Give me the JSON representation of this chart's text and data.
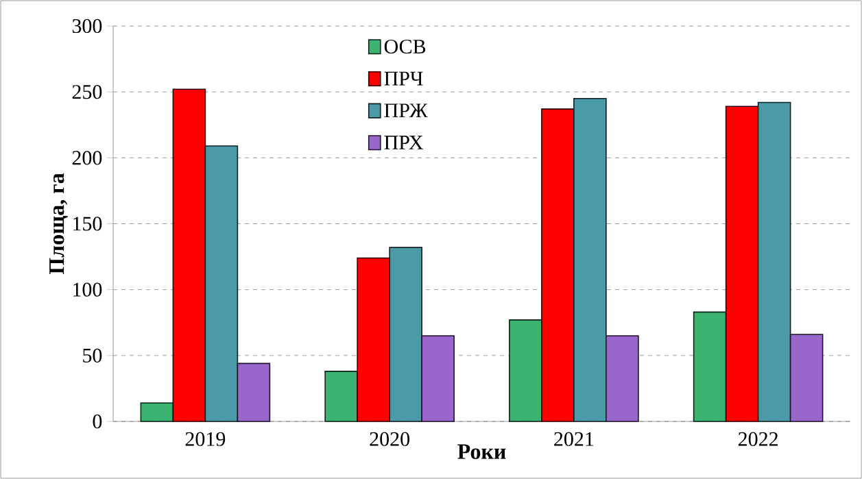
{
  "chart_data": {
    "type": "bar",
    "xlabel": "Роки",
    "ylabel": "Площа, га",
    "categories": [
      "2019",
      "2020",
      "2021",
      "2022"
    ],
    "series": [
      {
        "name": "ОСВ",
        "color": "#3cb371",
        "values": [
          14,
          38,
          77,
          83
        ]
      },
      {
        "name": "ПРЧ",
        "color": "#ff0000",
        "values": [
          252,
          124,
          237,
          239
        ]
      },
      {
        "name": "ПРЖ",
        "color": "#4a9aa8",
        "values": [
          209,
          132,
          245,
          242
        ]
      },
      {
        "name": "ПРХ",
        "color": "#9966cc",
        "values": [
          44,
          65,
          65,
          66
        ]
      }
    ],
    "ylim": [
      0,
      300
    ],
    "yticks": [
      0,
      50,
      100,
      150,
      200,
      250,
      300
    ],
    "grid": "y",
    "legend": "top"
  }
}
